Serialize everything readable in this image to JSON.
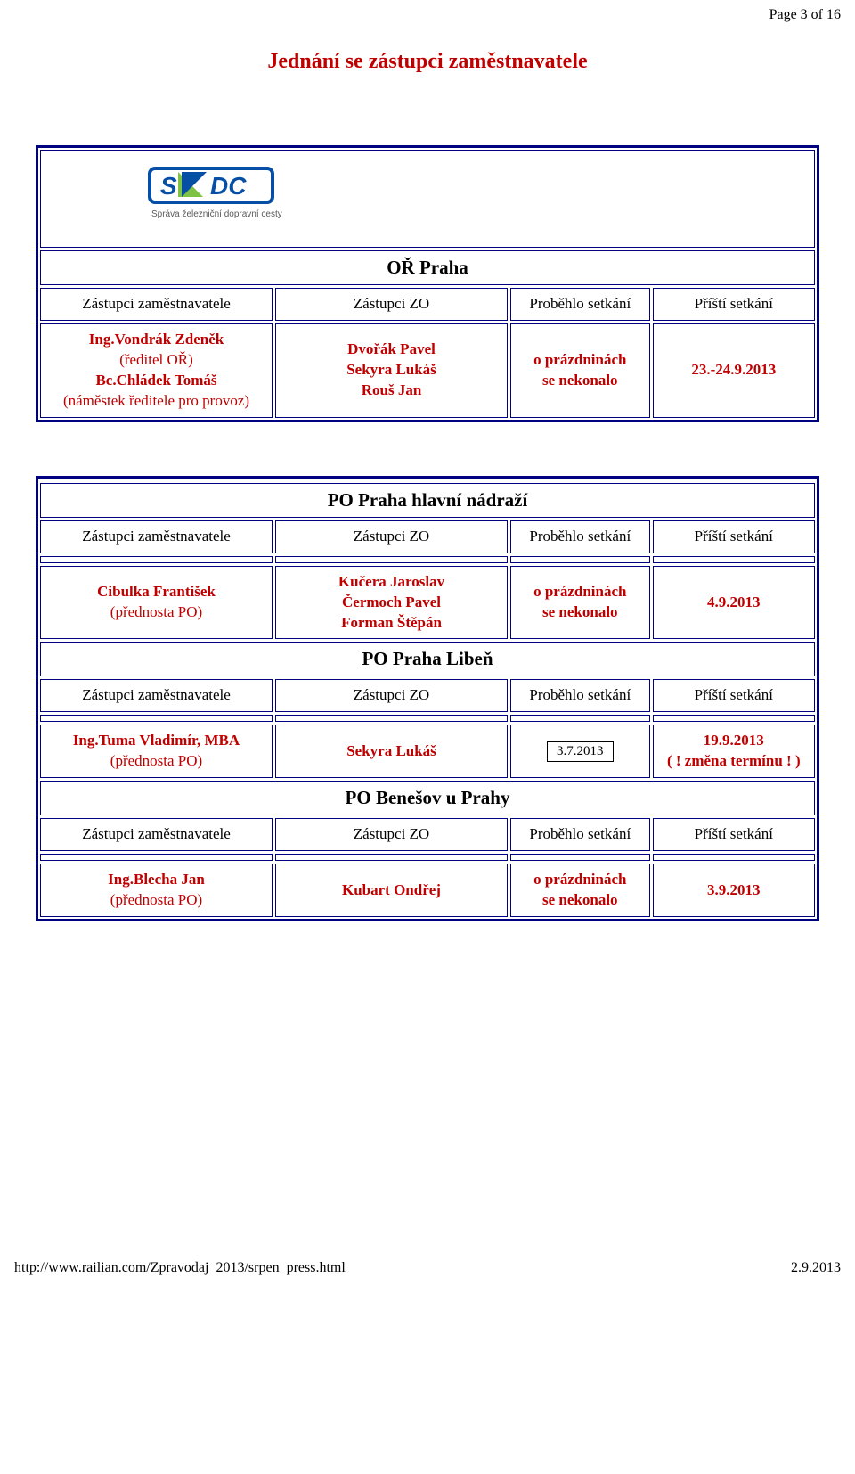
{
  "page_header": "Page 3 of 16",
  "section_title": "Jednání se zástupci zaměstnavatele",
  "logo": {
    "text_main": "SZDC",
    "text_sub": "Správa železniční dopravní cesty",
    "bar_color": "#074fa5",
    "accent_color": "#7dc242",
    "text_color": "#5a5a5a"
  },
  "col_headers": {
    "c1": "Zástupci zaměstnavatele",
    "c2": "Zástupci ZO",
    "c3": "Proběhlo setkání",
    "c4": "Příští setkání"
  },
  "block1": {
    "heading": "OŘ Praha",
    "rep_lines": [
      "Ing.Vondrák Zdeněk",
      "(ředitel OŘ)",
      "Bc.Chládek Tomáš",
      "(náměstek ředitele pro provoz)"
    ],
    "zo_lines": [
      "Dvořák Pavel",
      "Sekyra Lukáš",
      "Rouš Jan"
    ],
    "ran_lines": [
      "o prázdninách",
      "se nekonalo"
    ],
    "next": "23.-24.9.2013"
  },
  "block2": [
    {
      "heading": "PO Praha hlavní nádraží",
      "rep_lines": [
        "Cibulka František",
        "(přednosta PO)"
      ],
      "zo_lines": [
        "Kučera Jaroslav",
        "Čermoch Pavel",
        "Forman Štěpán"
      ],
      "ran_lines": [
        "o prázdninách",
        "se nekonalo"
      ],
      "next_lines": [
        "4.9.2013"
      ]
    },
    {
      "heading": "PO Praha Libeň",
      "rep_lines": [
        "Ing.Tuma Vladimír, MBA",
        "(přednosta PO)"
      ],
      "zo_lines": [
        "Sekyra Lukáš"
      ],
      "ran_boxed": "3.7.2013",
      "next_lines": [
        "19.9.2013",
        "( ! změna termínu ! )"
      ]
    },
    {
      "heading": "PO Benešov u Prahy",
      "rep_lines": [
        "Ing.Blecha Jan",
        "(přednosta PO)"
      ],
      "zo_lines": [
        "Kubart Ondřej"
      ],
      "ran_lines": [
        "o prázdninách",
        "se nekonalo"
      ],
      "next_lines": [
        "3.9.2013"
      ]
    }
  ],
  "footer": {
    "left": "http://www.railian.com/Zpravodaj_2013/srpen_press.html",
    "right": "2.9.2013"
  }
}
